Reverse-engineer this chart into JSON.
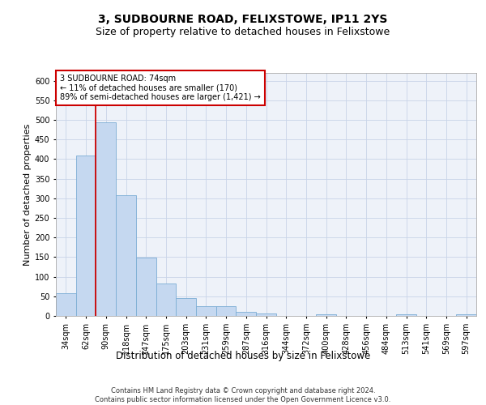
{
  "title1": "3, SUDBOURNE ROAD, FELIXSTOWE, IP11 2YS",
  "title2": "Size of property relative to detached houses in Felixstowe",
  "xlabel": "Distribution of detached houses by size in Felixstowe",
  "ylabel": "Number of detached properties",
  "bar_labels": [
    "34sqm",
    "62sqm",
    "90sqm",
    "118sqm",
    "147sqm",
    "175sqm",
    "203sqm",
    "231sqm",
    "259sqm",
    "287sqm",
    "316sqm",
    "344sqm",
    "372sqm",
    "400sqm",
    "428sqm",
    "456sqm",
    "484sqm",
    "513sqm",
    "541sqm",
    "569sqm",
    "597sqm"
  ],
  "bar_values": [
    57,
    410,
    493,
    307,
    148,
    82,
    45,
    25,
    25,
    10,
    7,
    0,
    0,
    5,
    0,
    0,
    0,
    5,
    0,
    0,
    5
  ],
  "bar_color": "#c5d8f0",
  "bar_edge_color": "#7badd4",
  "vline_x": 1.5,
  "vline_color": "#cc0000",
  "annotation_text": "3 SUDBOURNE ROAD: 74sqm\n← 11% of detached houses are smaller (170)\n89% of semi-detached houses are larger (1,421) →",
  "annotation_box_color": "white",
  "annotation_box_edge": "#cc0000",
  "ylim": [
    0,
    620
  ],
  "yticks": [
    0,
    50,
    100,
    150,
    200,
    250,
    300,
    350,
    400,
    450,
    500,
    550,
    600
  ],
  "footer": "Contains HM Land Registry data © Crown copyright and database right 2024.\nContains public sector information licensed under the Open Government Licence v3.0.",
  "bg_color": "#eef2f9",
  "grid_color": "#c8d4e8",
  "title1_fontsize": 10,
  "title2_fontsize": 9,
  "xlabel_fontsize": 8.5,
  "ylabel_fontsize": 8,
  "tick_fontsize": 7,
  "annotation_fontsize": 7,
  "footer_fontsize": 6
}
